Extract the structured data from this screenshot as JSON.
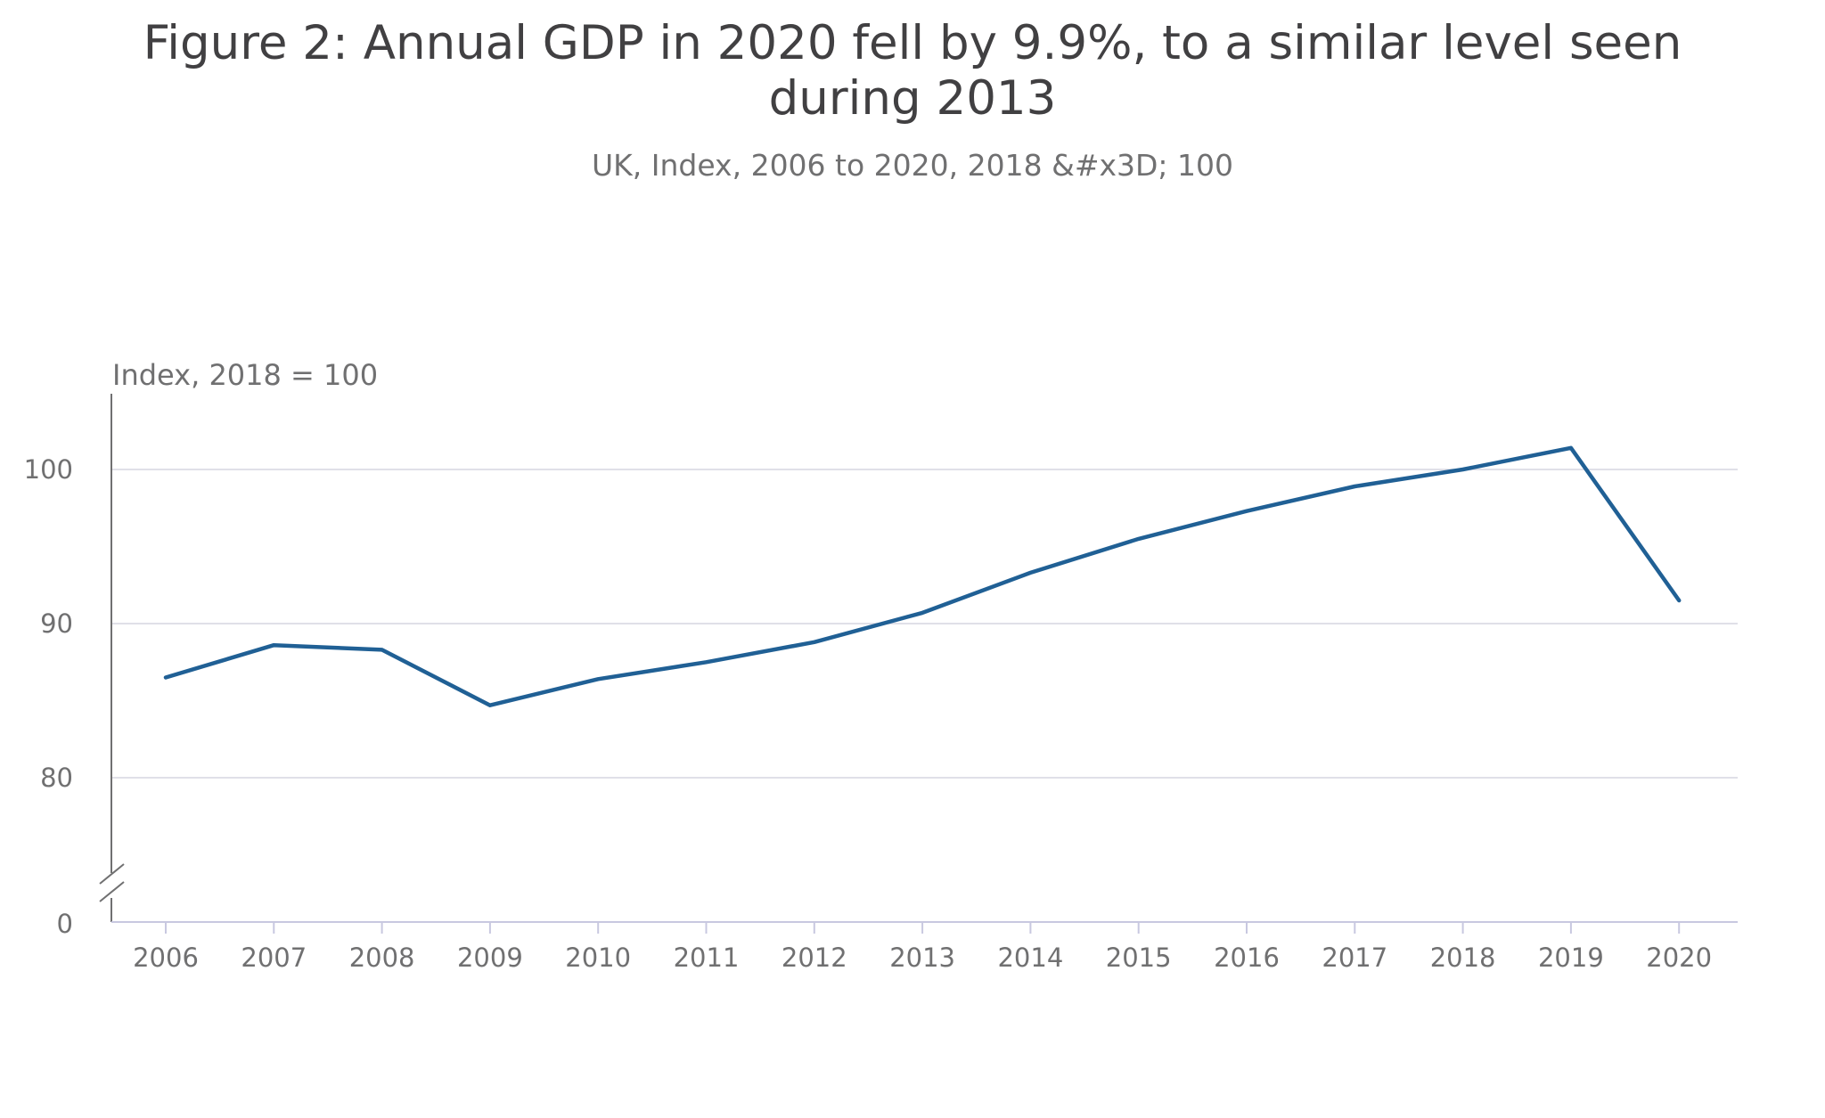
{
  "chart_data": {
    "type": "line",
    "title": "Figure 2: Annual GDP in 2020 fell by 9.9%, to a similar level seen during 2013",
    "subtitle": "UK, Index, 2006 to 2020, 2018 &#x3D; 100",
    "ylabel": "Index, 2018 = 100",
    "xlabel": "",
    "x": [
      "2006",
      "2007",
      "2008",
      "2009",
      "2010",
      "2011",
      "2012",
      "2013",
      "2014",
      "2015",
      "2016",
      "2017",
      "2018",
      "2019",
      "2020"
    ],
    "series": [
      {
        "values": [
          86.5,
          88.6,
          88.3,
          84.7,
          86.4,
          87.5,
          88.8,
          90.7,
          93.3,
          95.5,
          97.3,
          98.9,
          100.0,
          101.4,
          91.5
        ]
      }
    ],
    "yticks": [
      "0",
      "80",
      "90",
      "100"
    ],
    "ylim": [
      75,
      105
    ],
    "axis_break": true,
    "grid": true,
    "legend": "none",
    "line_color": "#206095",
    "grid_color": "#e0e0e8",
    "axis_color": "#c8c8e0"
  }
}
